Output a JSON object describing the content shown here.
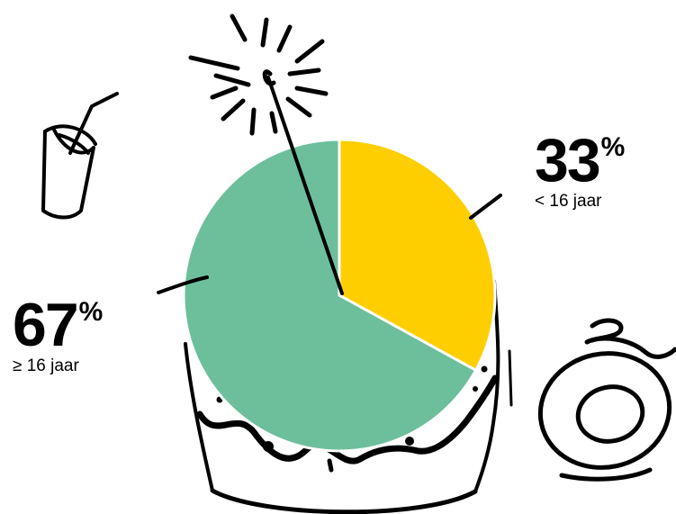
{
  "colors": {
    "under_16": "#FFCE00",
    "over_16": "#6DBF9C",
    "ink": "#000000"
  },
  "labels": {
    "under": {
      "value": "33",
      "sign": "%",
      "text": "< 16 jaar"
    },
    "over": {
      "value": "67",
      "sign": "%",
      "text": "≥ 16 jaar"
    }
  },
  "chart_data": {
    "type": "pie",
    "title": "",
    "slices": [
      {
        "label": "< 16 jaar",
        "value": 33,
        "color": "#FFCE00"
      },
      {
        "label": "≥ 16 jaar",
        "value": 67,
        "color": "#6DBF9C"
      }
    ],
    "start": "12 o'clock",
    "direction": "clockwise",
    "legend": "none",
    "decorations": [
      "cake",
      "candle-sparkle",
      "drink-cup-with-straw",
      "plate-with-candy"
    ]
  }
}
